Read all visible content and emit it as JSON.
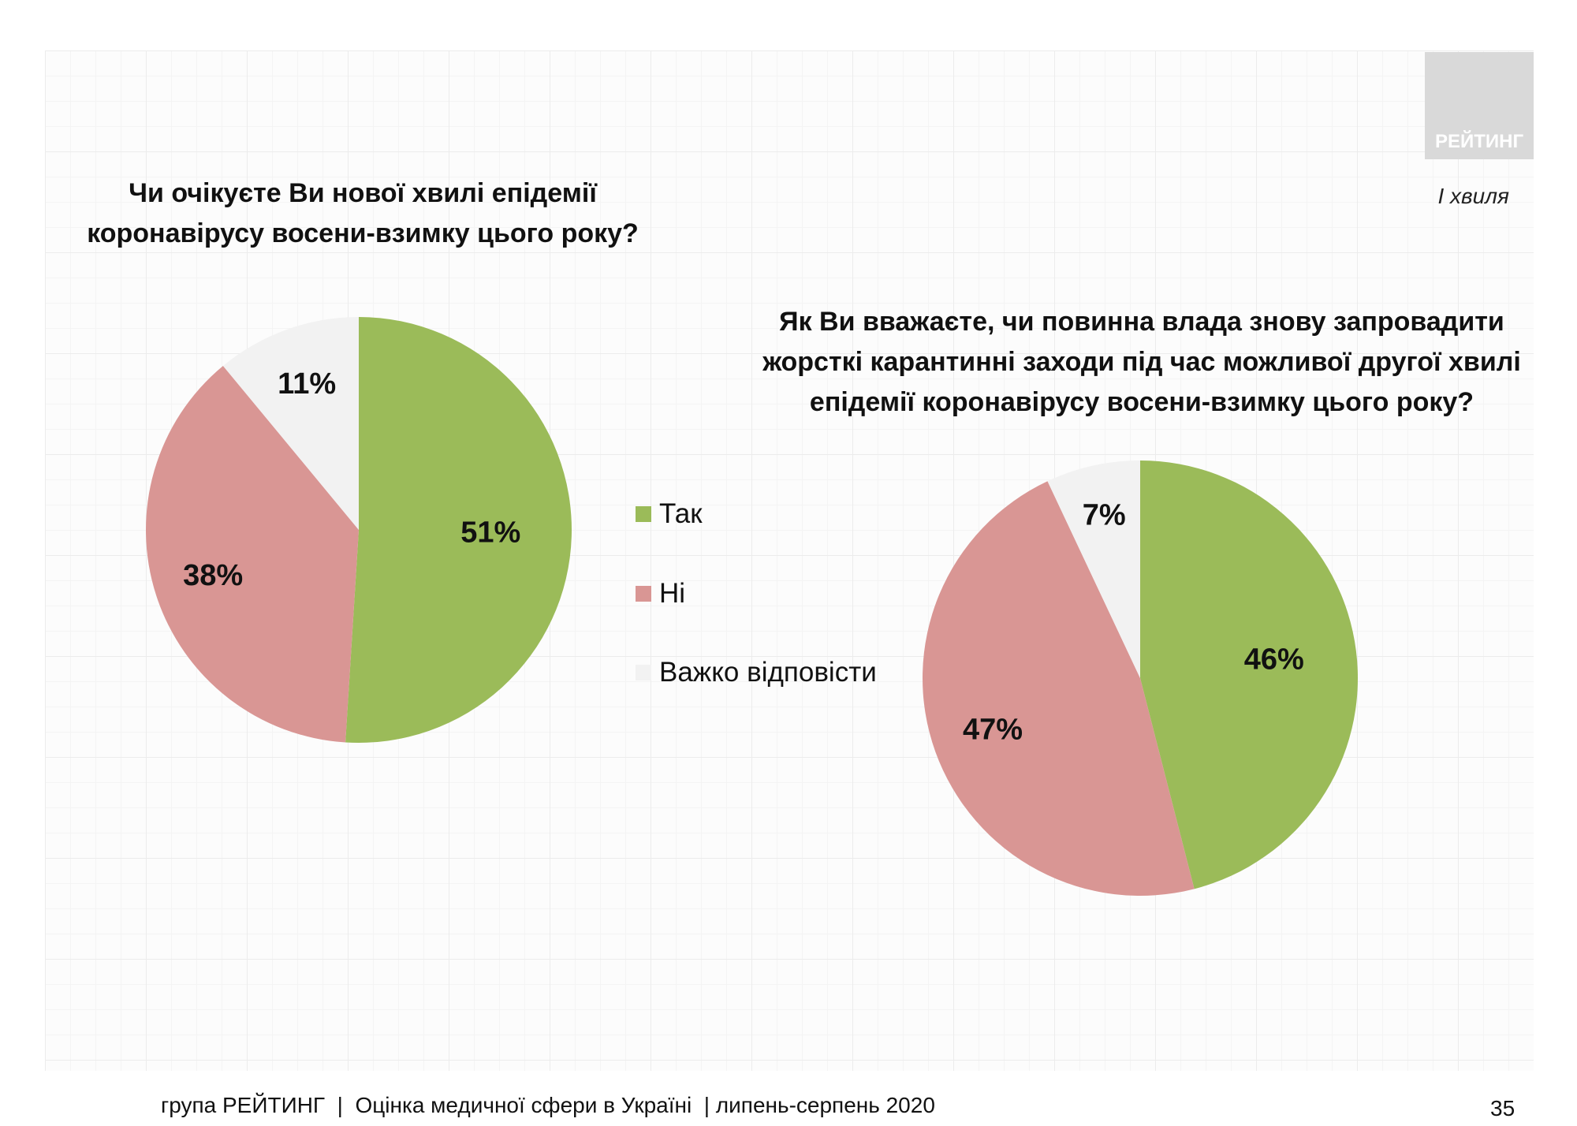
{
  "logo": "РЕЙТИНГ",
  "wave": "І хвиля",
  "colors": {
    "Так": "#9bbb59",
    "Ні": "#d99694",
    "Важко відповісти": "#f2f2f2"
  },
  "legend": [
    "Так",
    "Ні",
    "Важко відповісти"
  ],
  "chart_data": [
    {
      "type": "pie",
      "title_lines": [
        "Чи очікуєте Ви нової хвилі епідемії",
        "коронавірусу восени-взимку цього року?"
      ],
      "categories": [
        "Так",
        "Ні",
        "Важко відповісти"
      ],
      "values": [
        51,
        38,
        11
      ],
      "labels": [
        "51%",
        "38%",
        "11%"
      ]
    },
    {
      "type": "pie",
      "title_lines": [
        "Як Ви вважаєте, чи повинна влада знову запровадити",
        "жорсткі карантинні заходи під час можливої другої хвилі",
        "епідемії коронавірусу восени-взимку цього року?"
      ],
      "categories": [
        "Так",
        "Ні",
        "Важко відповісти"
      ],
      "values": [
        46,
        47,
        7
      ],
      "labels": [
        "46%",
        "47%",
        "7%"
      ]
    }
  ],
  "footer": "група РЕЙТИНГ  |  Оцінка медичної сфери в Україні  | липень-серпень 2020",
  "page_number": "35"
}
